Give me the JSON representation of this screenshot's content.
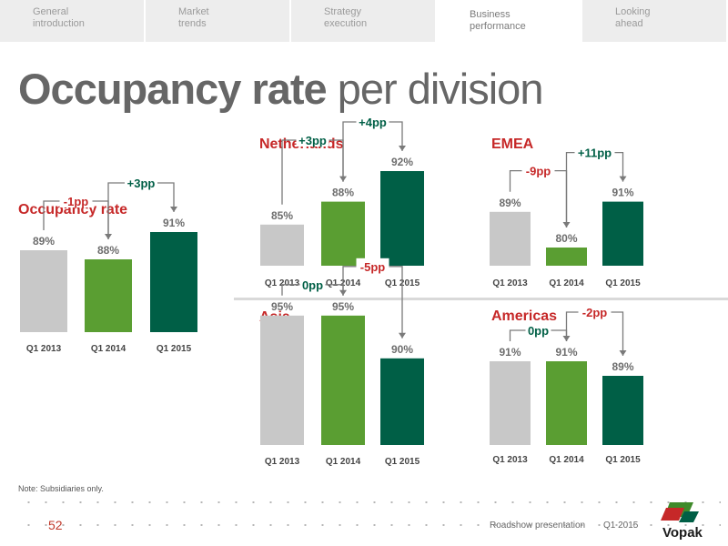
{
  "nav": {
    "tabs": [
      {
        "label": "General\nintroduction"
      },
      {
        "label": "Market\ntrends"
      },
      {
        "label": "Strategy\nexecution"
      },
      {
        "label": "Business\nperformance",
        "active": true
      },
      {
        "label": "Looking\nahead"
      }
    ]
  },
  "page": {
    "title_bold": "Occupancy rate",
    "title_rest": " per division",
    "note": "Note: Subsidiaries only.",
    "page_number": "52",
    "footer_presentation": "Roadshow presentation",
    "footer_period": "Q1 2015",
    "logo_text": "Vopak"
  },
  "colors": {
    "q1_2013": "#c8c8c8",
    "q1_2014": "#5a9e32",
    "q1_2015": "#005f46",
    "positive": "#005f46",
    "negative": "#c62828"
  },
  "chart_data": [
    {
      "type": "bar",
      "title": "Occupancy rate",
      "categories": [
        "Q1 2013",
        "Q1 2014",
        "Q1 2015"
      ],
      "values": [
        89,
        88,
        91
      ],
      "value_labels": [
        "89%",
        "88%",
        "91%"
      ],
      "changes": [
        "-1pp",
        "+3pp"
      ]
    },
    {
      "type": "bar",
      "title": "Netherlands",
      "categories": [
        "Q1 2013",
        "Q1 2014",
        "Q1 2015"
      ],
      "values": [
        85,
        88,
        92
      ],
      "value_labels": [
        "85%",
        "88%",
        "92%"
      ],
      "changes": [
        "+3pp",
        "+4pp"
      ]
    },
    {
      "type": "bar",
      "title": "EMEA",
      "categories": [
        "Q1 2013",
        "Q1 2014",
        "Q1 2015"
      ],
      "values": [
        89,
        80,
        91
      ],
      "value_labels": [
        "89%",
        "80%",
        "91%"
      ],
      "changes": [
        "-9pp",
        "+11pp"
      ]
    },
    {
      "type": "bar",
      "title": "Asia",
      "categories": [
        "Q1 2013",
        "Q1 2014",
        "Q1 2015"
      ],
      "values": [
        95,
        95,
        90
      ],
      "value_labels": [
        "95%",
        "95%",
        "90%"
      ],
      "changes": [
        "0pp",
        "-5pp"
      ]
    },
    {
      "type": "bar",
      "title": "Americas",
      "categories": [
        "Q1 2013",
        "Q1 2014",
        "Q1 2015"
      ],
      "values": [
        91,
        91,
        89
      ],
      "value_labels": [
        "91%",
        "91%",
        "89%"
      ],
      "changes": [
        "0pp",
        "-2pp"
      ]
    }
  ]
}
